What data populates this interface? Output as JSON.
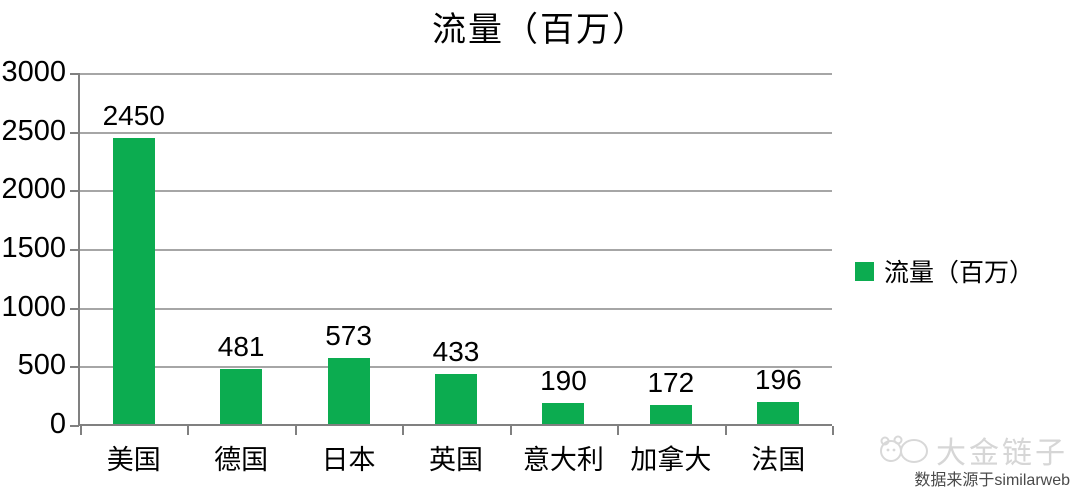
{
  "chart_data": {
    "type": "bar",
    "title": "流量（百万）",
    "categories": [
      "美国",
      "德国",
      "日本",
      "英国",
      "意大利",
      "加拿大",
      "法国"
    ],
    "values": [
      2450,
      481,
      573,
      433,
      190,
      172,
      196
    ],
    "series": [
      {
        "name": "流量（百万）",
        "values": [
          2450,
          481,
          573,
          433,
          190,
          172,
          196
        ]
      }
    ],
    "xlabel": "",
    "ylabel": "",
    "ylim": [
      0,
      3000
    ],
    "ytick_step": 500,
    "ytick_labels": [
      "0",
      "500",
      "1000",
      "1500",
      "2000",
      "2500",
      "3000"
    ],
    "grid": "horizontal",
    "legend_position": "right",
    "data_labels": true
  },
  "legend": {
    "label": "流量（百万）",
    "swatch_color": "#0cac50"
  },
  "watermark": {
    "brand": "大金链子",
    "source": "数据来源于similarweb"
  },
  "colors": {
    "bar": "#0cac50",
    "axis": "#808080",
    "grid": "#a6a6a6",
    "text": "#000000",
    "watermark": "#d6d6d6",
    "source_text": "#4a4a4a"
  }
}
